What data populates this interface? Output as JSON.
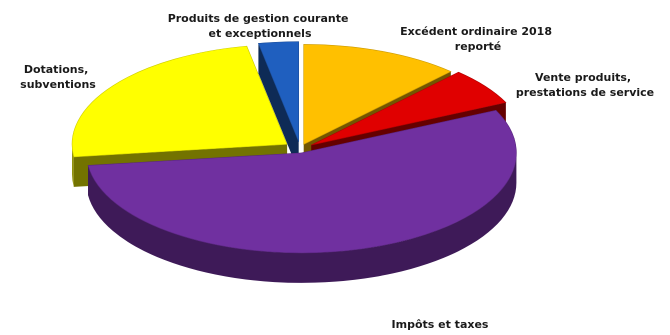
{
  "chart_data": {
    "type": "pie",
    "title": "",
    "three_d": true,
    "exploded": true,
    "legend": "none",
    "slices": [
      {
        "name": "Excédent ordinaire 2018 reporté",
        "label_lines": [
          "Excédent ordinaire 2018",
          "reporté"
        ],
        "value": 12,
        "color": "#ffc000"
      },
      {
        "name": "Vente produits, prestations de service",
        "label_lines": [
          "Vente produits,",
          "prestations de service"
        ],
        "value": 6,
        "color": "#e00000"
      },
      {
        "name": "Impôts et taxes",
        "label_lines": [
          "Impôts et taxes"
        ],
        "value": 55,
        "color": "#7030a0"
      },
      {
        "name": "Dotations, subventions",
        "label_lines": [
          "Dotations,",
          "subventions"
        ],
        "value": 24,
        "color": "#ffff00"
      },
      {
        "name": "Produits de gestion courante et exceptionnels",
        "label_lines": [
          "Produits de gestion courante",
          "et exceptionnels"
        ],
        "value": 3,
        "color": "#1f5fbf"
      }
    ]
  }
}
